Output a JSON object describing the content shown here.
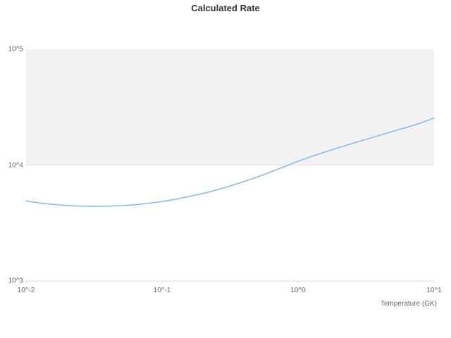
{
  "title": "Calculated Rate",
  "x_axis_title": "Temperature (GK)",
  "colors": {
    "series_line": "#7cb5ec",
    "plot_band": "#f2f2f2",
    "axis_line": "#d8d8d8",
    "grid_line": "#e6e6e6",
    "title_text": "#333333",
    "tick_text": "#666666"
  },
  "chart_data": {
    "type": "line",
    "title": "Calculated Rate",
    "xlabel": "Temperature (GK)",
    "ylabel": "",
    "x_scale": "log",
    "y_scale": "log",
    "xlim": [
      0.01,
      10
    ],
    "ylim": [
      1000,
      100000
    ],
    "xtick_labels": [
      "10^-2",
      "10^-1",
      "10^0",
      "10^1"
    ],
    "xtick_values": [
      0.01,
      0.1,
      1,
      10
    ],
    "ytick_labels": [
      "10^5",
      "10^4",
      "10^3"
    ],
    "ytick_values": [
      100000,
      10000,
      1000
    ],
    "plot_band_y": [
      10000,
      100000
    ],
    "legend": "none",
    "series": [
      {
        "name": "Calculated Rate",
        "x": [
          0.01,
          0.0126,
          0.0158,
          0.02,
          0.0251,
          0.0316,
          0.0398,
          0.0501,
          0.0631,
          0.0794,
          0.1,
          0.126,
          0.158,
          0.2,
          0.251,
          0.316,
          0.398,
          0.501,
          0.631,
          0.794,
          1.0,
          1.26,
          1.58,
          2.0,
          2.51,
          3.16,
          3.98,
          5.01,
          6.31,
          7.94,
          10.0
        ],
        "y": [
          4900,
          4720,
          4580,
          4480,
          4430,
          4410,
          4420,
          4470,
          4550,
          4680,
          4850,
          5080,
          5360,
          5700,
          6100,
          6600,
          7200,
          7900,
          8750,
          9700,
          10800,
          11900,
          13000,
          14200,
          15400,
          16700,
          18100,
          19600,
          21200,
          23100,
          25500
        ]
      }
    ]
  }
}
